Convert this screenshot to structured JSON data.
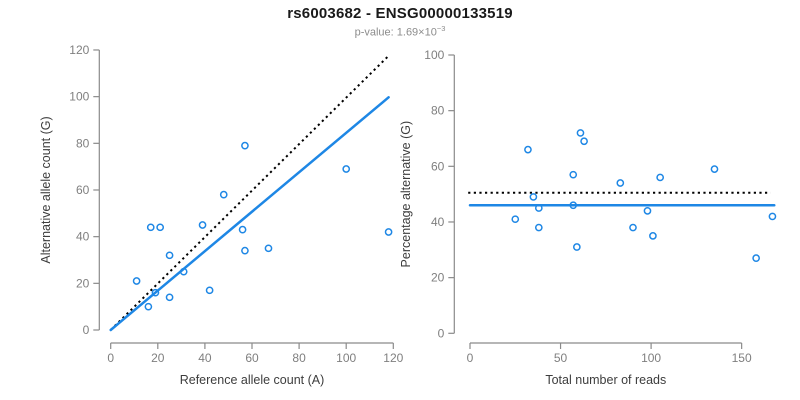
{
  "header": {
    "title": "rs6003682 - ENSG00000133519",
    "subtitle_prefix": "p-value: 1.69×10",
    "subtitle_exponent": "−3"
  },
  "colors": {
    "point_blue": "#1E87E5",
    "fit_line_blue": "#1E87E5",
    "dotted_line_black": "#000000",
    "axis_line_gray": "#8a8a8a",
    "tick_label_gray": "#7f7f7f",
    "axis_title_dark": "#3d3d3d"
  },
  "chart_data": [
    {
      "id": "allele-counts-scatter",
      "type": "scatter",
      "xlabel": "Reference allele count (A)",
      "ylabel": "Alternative allele count (G)",
      "xlim": [
        0,
        120
      ],
      "ylim": [
        0,
        120
      ],
      "xticks": [
        0,
        20,
        40,
        60,
        80,
        100,
        120
      ],
      "yticks": [
        0,
        20,
        40,
        60,
        80,
        100,
        120
      ],
      "grid": false,
      "points": [
        [
          57,
          79
        ],
        [
          100,
          69
        ],
        [
          48,
          58
        ],
        [
          17,
          44
        ],
        [
          21,
          44
        ],
        [
          39,
          45
        ],
        [
          56,
          43
        ],
        [
          118,
          42
        ],
        [
          57,
          34
        ],
        [
          67,
          35
        ],
        [
          25,
          32
        ],
        [
          31,
          25
        ],
        [
          11,
          21
        ],
        [
          19,
          16
        ],
        [
          25,
          14
        ],
        [
          16,
          10
        ],
        [
          42,
          17
        ]
      ],
      "lines": [
        {
          "name": "identity-line-dotted",
          "style": "dotted",
          "color": "#000000",
          "from": [
            0,
            0
          ],
          "to": [
            118,
            117.5
          ]
        },
        {
          "name": "fit-line-solid",
          "style": "solid",
          "color": "#1E87E5",
          "from": [
            0,
            0
          ],
          "to": [
            118,
            99.7
          ]
        }
      ]
    },
    {
      "id": "percentage-alternative-scatter",
      "type": "scatter",
      "xlabel": "Total number of reads",
      "ylabel": "Percentage alternative (G)",
      "xlim": [
        0,
        150
      ],
      "ylim": [
        0,
        100
      ],
      "xticks": [
        0,
        50,
        100,
        150
      ],
      "yticks": [
        0,
        20,
        40,
        60,
        80,
        100
      ],
      "grid": false,
      "points": [
        [
          61,
          72
        ],
        [
          63,
          69
        ],
        [
          32,
          66
        ],
        [
          57,
          57
        ],
        [
          83,
          54
        ],
        [
          105,
          56
        ],
        [
          135,
          59
        ],
        [
          35,
          49
        ],
        [
          38,
          45
        ],
        [
          57,
          46
        ],
        [
          98,
          44
        ],
        [
          25,
          41
        ],
        [
          38,
          38
        ],
        [
          90,
          38
        ],
        [
          101,
          35
        ],
        [
          59,
          31
        ],
        [
          167,
          42
        ],
        [
          158,
          27
        ]
      ],
      "lines": [
        {
          "name": "expected-percentage-dotted",
          "style": "dotted",
          "color": "#000000",
          "from": [
            -1,
            50.5
          ],
          "to": [
            166,
            50.5
          ]
        },
        {
          "name": "fit-percentage-solid",
          "style": "solid",
          "color": "#1E87E5",
          "from": [
            0,
            46
          ],
          "to": [
            168,
            46
          ]
        }
      ]
    }
  ]
}
